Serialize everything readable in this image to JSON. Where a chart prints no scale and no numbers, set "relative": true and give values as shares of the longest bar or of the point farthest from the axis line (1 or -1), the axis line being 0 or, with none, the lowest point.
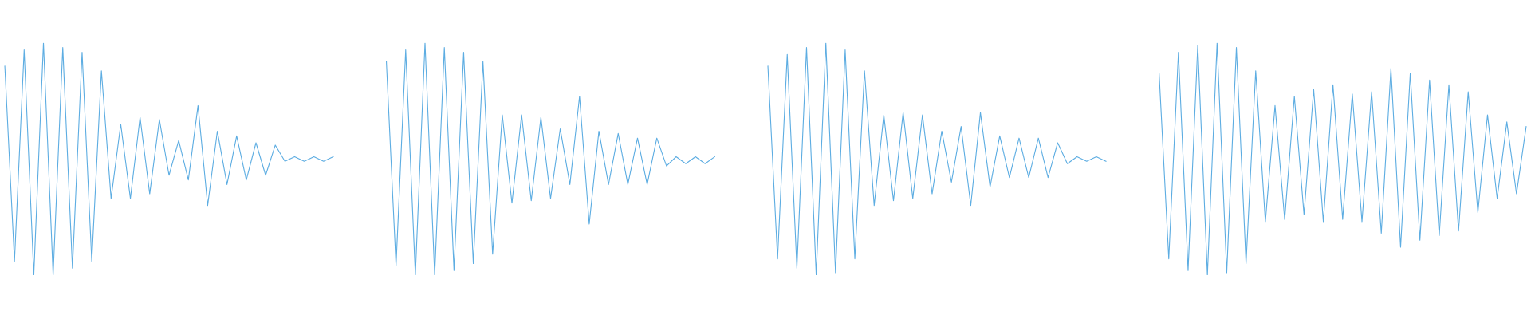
{
  "chart_data": [
    {
      "type": "line",
      "relative": true,
      "categories": [
        null,
        null,
        null,
        null,
        null,
        null,
        null,
        null,
        null,
        null,
        null,
        null,
        null,
        null,
        null,
        null,
        null,
        null,
        null,
        null,
        null,
        null,
        null,
        null,
        null,
        null,
        null,
        null,
        null,
        null,
        null,
        null,
        null,
        null,
        null
      ],
      "series": [
        {
          "color": "#5dade2",
          "values": [
            0.9,
            0.06,
            0.97,
            0.0,
            1.0,
            0.0,
            0.98,
            0.03,
            0.96,
            0.06,
            0.88,
            0.33,
            0.65,
            0.33,
            0.68,
            0.35,
            0.67,
            0.43,
            0.58,
            0.41,
            0.73,
            0.3,
            0.62,
            0.39,
            0.6,
            0.41,
            0.57,
            0.43,
            0.56,
            0.49,
            0.51,
            0.49,
            0.51,
            0.49,
            0.51
          ]
        }
      ]
    },
    {
      "type": "line",
      "relative": true,
      "categories": [
        null,
        null,
        null,
        null,
        null,
        null,
        null,
        null,
        null,
        null,
        null,
        null,
        null,
        null,
        null,
        null,
        null,
        null,
        null,
        null,
        null,
        null,
        null,
        null,
        null,
        null,
        null,
        null,
        null,
        null,
        null,
        null,
        null,
        null,
        null
      ],
      "series": [
        {
          "color": "#5dade2",
          "values": [
            0.92,
            0.04,
            0.97,
            0.0,
            1.0,
            0.0,
            0.98,
            0.02,
            0.96,
            0.05,
            0.92,
            0.09,
            0.69,
            0.31,
            0.69,
            0.32,
            0.68,
            0.33,
            0.63,
            0.39,
            0.77,
            0.22,
            0.62,
            0.39,
            0.61,
            0.39,
            0.59,
            0.39,
            0.59,
            0.47,
            0.51,
            0.48,
            0.51,
            0.48,
            0.51
          ]
        }
      ]
    },
    {
      "type": "line",
      "relative": true,
      "categories": [
        null,
        null,
        null,
        null,
        null,
        null,
        null,
        null,
        null,
        null,
        null,
        null,
        null,
        null,
        null,
        null,
        null,
        null,
        null,
        null,
        null,
        null,
        null,
        null,
        null,
        null,
        null,
        null,
        null,
        null,
        null,
        null,
        null,
        null,
        null,
        null
      ],
      "series": [
        {
          "color": "#5dade2",
          "values": [
            0.9,
            0.07,
            0.95,
            0.03,
            0.98,
            0.0,
            1.0,
            0.01,
            0.97,
            0.07,
            0.88,
            0.3,
            0.69,
            0.32,
            0.7,
            0.33,
            0.69,
            0.35,
            0.62,
            0.4,
            0.64,
            0.3,
            0.7,
            0.38,
            0.6,
            0.42,
            0.59,
            0.42,
            0.59,
            0.42,
            0.57,
            0.48,
            0.51,
            0.49,
            0.51,
            0.49
          ]
        }
      ]
    },
    {
      "type": "line",
      "relative": true,
      "categories": [
        null,
        null,
        null,
        null,
        null,
        null,
        null,
        null,
        null,
        null,
        null,
        null,
        null,
        null,
        null,
        null,
        null,
        null,
        null,
        null,
        null,
        null,
        null,
        null,
        null,
        null,
        null,
        null,
        null,
        null,
        null,
        null,
        null,
        null,
        null,
        null,
        null,
        null,
        null
      ],
      "series": [
        {
          "color": "#5dade2",
          "values": [
            0.87,
            0.07,
            0.96,
            0.02,
            0.99,
            0.0,
            1.0,
            0.01,
            0.98,
            0.05,
            0.88,
            0.23,
            0.73,
            0.24,
            0.77,
            0.26,
            0.8,
            0.23,
            0.82,
            0.24,
            0.78,
            0.23,
            0.79,
            0.18,
            0.89,
            0.12,
            0.87,
            0.15,
            0.84,
            0.17,
            0.82,
            0.19,
            0.79,
            0.27,
            0.69,
            0.33,
            0.66,
            0.35,
            0.64
          ]
        }
      ]
    }
  ]
}
